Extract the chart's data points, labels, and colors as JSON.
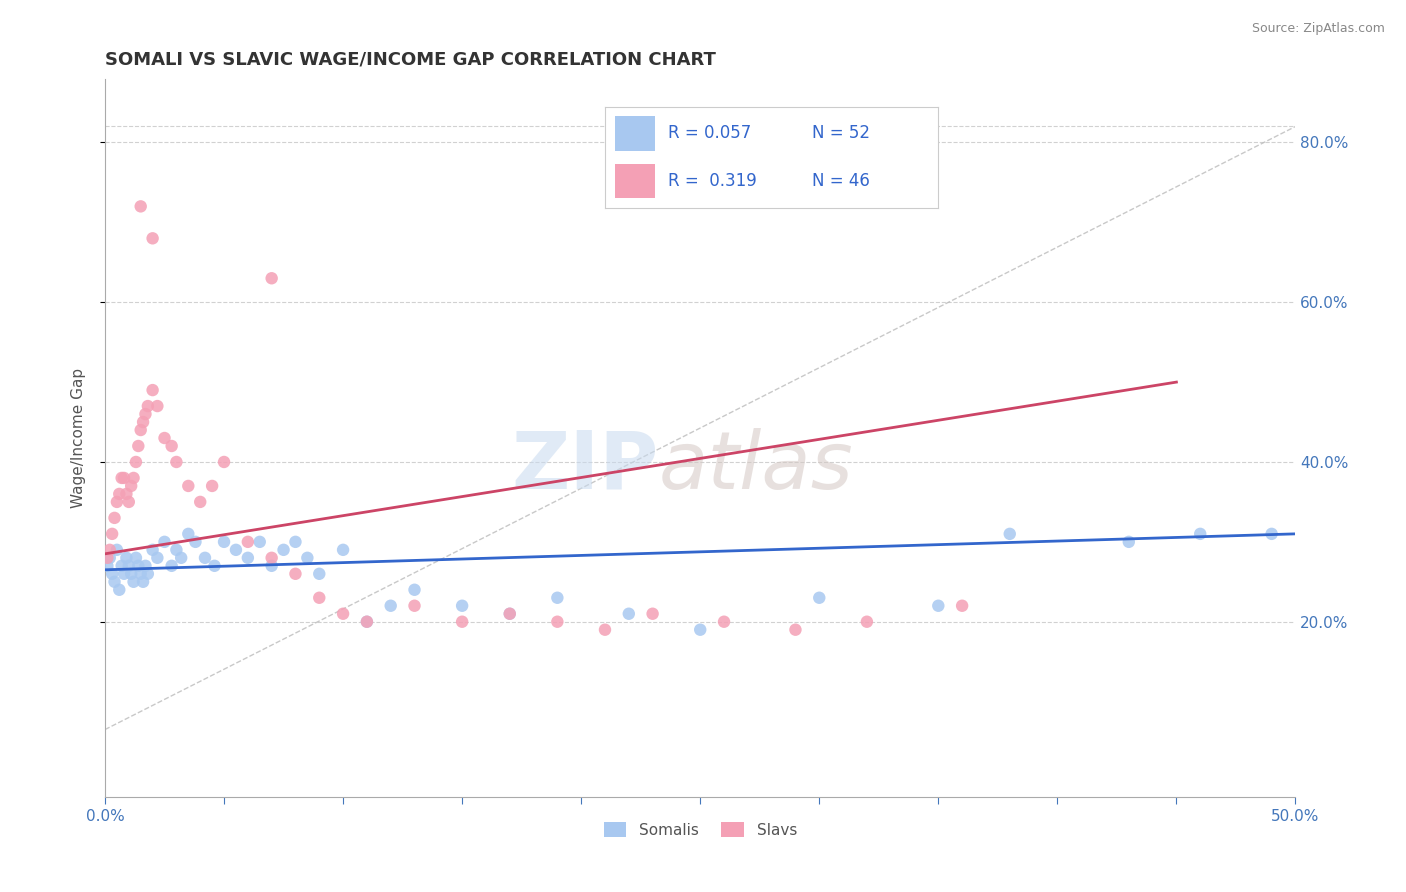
{
  "title": "SOMALI VS SLAVIC WAGE/INCOME GAP CORRELATION CHART",
  "source": "Source: ZipAtlas.com",
  "ylabel": "Wage/Income Gap",
  "ytick_vals": [
    0.2,
    0.4,
    0.6,
    0.8
  ],
  "ytick_labels": [
    "20.0%",
    "40.0%",
    "60.0%",
    "80.0%"
  ],
  "xlim": [
    0.0,
    0.5
  ],
  "ylim": [
    -0.02,
    0.88
  ],
  "somali_R": 0.057,
  "somali_N": 52,
  "slavic_R": 0.319,
  "slavic_N": 46,
  "somali_color": "#a8c8f0",
  "slavic_color": "#f4a0b5",
  "somali_line_color": "#3366cc",
  "slavic_line_color": "#cc4466",
  "legend_text_color": "#3366cc",
  "background_color": "#ffffff",
  "somali_x": [
    0.001,
    0.002,
    0.003,
    0.004,
    0.005,
    0.006,
    0.007,
    0.008,
    0.009,
    0.01,
    0.011,
    0.012,
    0.013,
    0.014,
    0.015,
    0.016,
    0.017,
    0.018,
    0.02,
    0.022,
    0.025,
    0.028,
    0.03,
    0.032,
    0.035,
    0.038,
    0.042,
    0.046,
    0.05,
    0.055,
    0.06,
    0.065,
    0.07,
    0.075,
    0.08,
    0.085,
    0.09,
    0.1,
    0.11,
    0.12,
    0.13,
    0.15,
    0.17,
    0.19,
    0.22,
    0.25,
    0.3,
    0.35,
    0.38,
    0.43,
    0.46,
    0.49
  ],
  "somali_y": [
    0.27,
    0.28,
    0.26,
    0.25,
    0.29,
    0.24,
    0.27,
    0.26,
    0.28,
    0.27,
    0.26,
    0.25,
    0.28,
    0.27,
    0.26,
    0.25,
    0.27,
    0.26,
    0.29,
    0.28,
    0.3,
    0.27,
    0.29,
    0.28,
    0.31,
    0.3,
    0.28,
    0.27,
    0.3,
    0.29,
    0.28,
    0.3,
    0.27,
    0.29,
    0.3,
    0.28,
    0.26,
    0.29,
    0.2,
    0.22,
    0.24,
    0.22,
    0.21,
    0.23,
    0.21,
    0.19,
    0.23,
    0.22,
    0.31,
    0.3,
    0.31,
    0.31
  ],
  "slavic_x": [
    0.001,
    0.002,
    0.003,
    0.004,
    0.005,
    0.006,
    0.007,
    0.008,
    0.009,
    0.01,
    0.011,
    0.012,
    0.013,
    0.014,
    0.015,
    0.016,
    0.017,
    0.018,
    0.02,
    0.022,
    0.025,
    0.028,
    0.03,
    0.035,
    0.04,
    0.045,
    0.05,
    0.06,
    0.07,
    0.08,
    0.09,
    0.1,
    0.11,
    0.13,
    0.15,
    0.17,
    0.19,
    0.21,
    0.23,
    0.26,
    0.29,
    0.32,
    0.36,
    0.07,
    0.015,
    0.02
  ],
  "slavic_y": [
    0.28,
    0.29,
    0.31,
    0.33,
    0.35,
    0.36,
    0.38,
    0.38,
    0.36,
    0.35,
    0.37,
    0.38,
    0.4,
    0.42,
    0.44,
    0.45,
    0.46,
    0.47,
    0.49,
    0.47,
    0.43,
    0.42,
    0.4,
    0.37,
    0.35,
    0.37,
    0.4,
    0.3,
    0.28,
    0.26,
    0.23,
    0.21,
    0.2,
    0.22,
    0.2,
    0.21,
    0.2,
    0.19,
    0.21,
    0.2,
    0.19,
    0.2,
    0.22,
    0.63,
    0.72,
    0.68
  ],
  "somali_line_x": [
    0.0,
    0.5
  ],
  "somali_line_y": [
    0.265,
    0.31
  ],
  "slavic_line_x": [
    0.0,
    0.45
  ],
  "slavic_line_y": [
    0.285,
    0.5
  ]
}
